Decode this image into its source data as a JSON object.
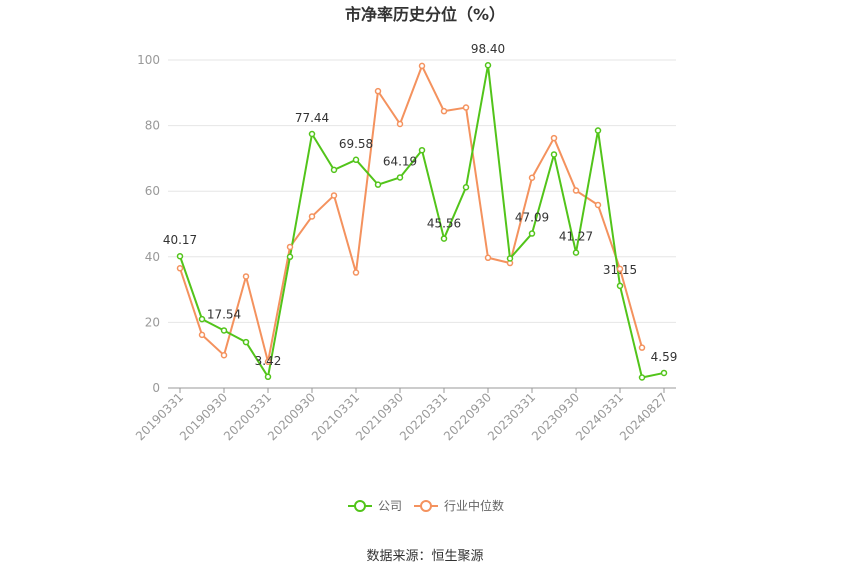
{
  "chart_data": {
    "type": "line",
    "title": "市净率历史分位（%）",
    "source": "数据来源：恒生聚源",
    "ylim": [
      0,
      100
    ],
    "yticks": [
      0,
      20,
      40,
      60,
      80,
      100
    ],
    "grid": true,
    "legend_position": "bottom",
    "x_tick_labels": [
      "20190331",
      "20190930",
      "20200331",
      "20200930",
      "20210331",
      "20210930",
      "20220331",
      "20220930",
      "20230331",
      "20230930",
      "20240331",
      "20240827"
    ],
    "x": [
      "20190331",
      "20190630",
      "20190930",
      "20191231",
      "20200331",
      "20200630",
      "20200930",
      "20201231",
      "20210331",
      "20210630",
      "20210930",
      "20211231",
      "20220331",
      "20220630",
      "20220930",
      "20221231",
      "20230331",
      "20230630",
      "20230930",
      "20231231",
      "20240331",
      "20240630",
      "20240827"
    ],
    "series": [
      {
        "name": "公司",
        "color": "#52c41a",
        "values": [
          40.17,
          21,
          17.54,
          14,
          3.42,
          40,
          77.44,
          66.5,
          69.58,
          62,
          64.19,
          72.5,
          45.56,
          61.2,
          98.4,
          39.5,
          47.09,
          71.2,
          41.27,
          78.5,
          31.15,
          3.2,
          4.59
        ]
      },
      {
        "name": "行业中位数",
        "color": "#f4925e",
        "values": [
          36.5,
          16.2,
          10,
          34,
          8,
          43,
          52.3,
          58.7,
          35.2,
          90.5,
          80.5,
          98.2,
          84.4,
          85.5,
          39.7,
          38.1,
          64.1,
          76.2,
          60.2,
          55.8,
          36.3,
          12.3,
          null
        ]
      }
    ],
    "data_labels": [
      {
        "index": 0,
        "text": "40.17"
      },
      {
        "index": 2,
        "text": "17.54"
      },
      {
        "index": 4,
        "text": "3.42"
      },
      {
        "index": 6,
        "text": "77.44"
      },
      {
        "index": 8,
        "text": "69.58"
      },
      {
        "index": 10,
        "text": "64.19"
      },
      {
        "index": 12,
        "text": "45.56"
      },
      {
        "index": 14,
        "text": "98.40"
      },
      {
        "index": 16,
        "text": "47.09"
      },
      {
        "index": 18,
        "text": "41.27"
      },
      {
        "index": 20,
        "text": "31.15"
      },
      {
        "index": 22,
        "text": "4.59"
      }
    ]
  }
}
